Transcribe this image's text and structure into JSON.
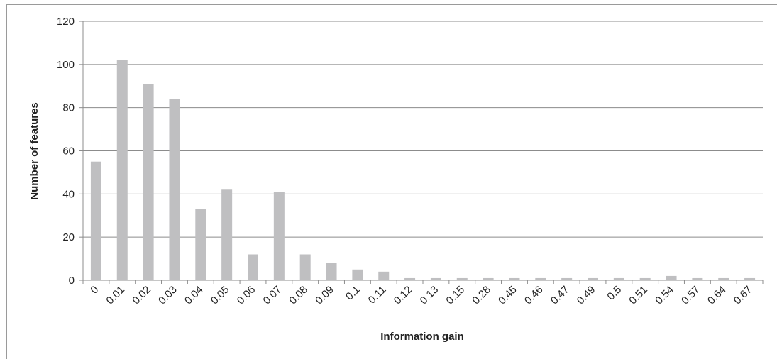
{
  "chart_data": {
    "type": "bar",
    "categories": [
      "0",
      "0.01",
      "0.02",
      "0.03",
      "0.04",
      "0.05",
      "0.06",
      "0.07",
      "0.08",
      "0.09",
      "0.1",
      "0.11",
      "0.12",
      "0.13",
      "0.15",
      "0.28",
      "0.45",
      "0.46",
      "0.47",
      "0.49",
      "0.5",
      "0.51",
      "0.54",
      "0.57",
      "0.64",
      "0.67"
    ],
    "values": [
      55,
      102,
      91,
      84,
      33,
      42,
      12,
      41,
      12,
      8,
      5,
      4,
      1,
      1,
      1,
      1,
      1,
      1,
      1,
      1,
      1,
      1,
      2,
      1,
      1,
      1
    ],
    "xlabel": "Information gain",
    "ylabel": "Number of features",
    "ylim": [
      0,
      120
    ],
    "yticks": [
      0,
      20,
      40,
      60,
      80,
      100,
      120
    ],
    "grid": true,
    "bar_color": "#bfbfc1",
    "grid_color": "#8c8c8c",
    "axis_color": "#8c8c8c"
  }
}
